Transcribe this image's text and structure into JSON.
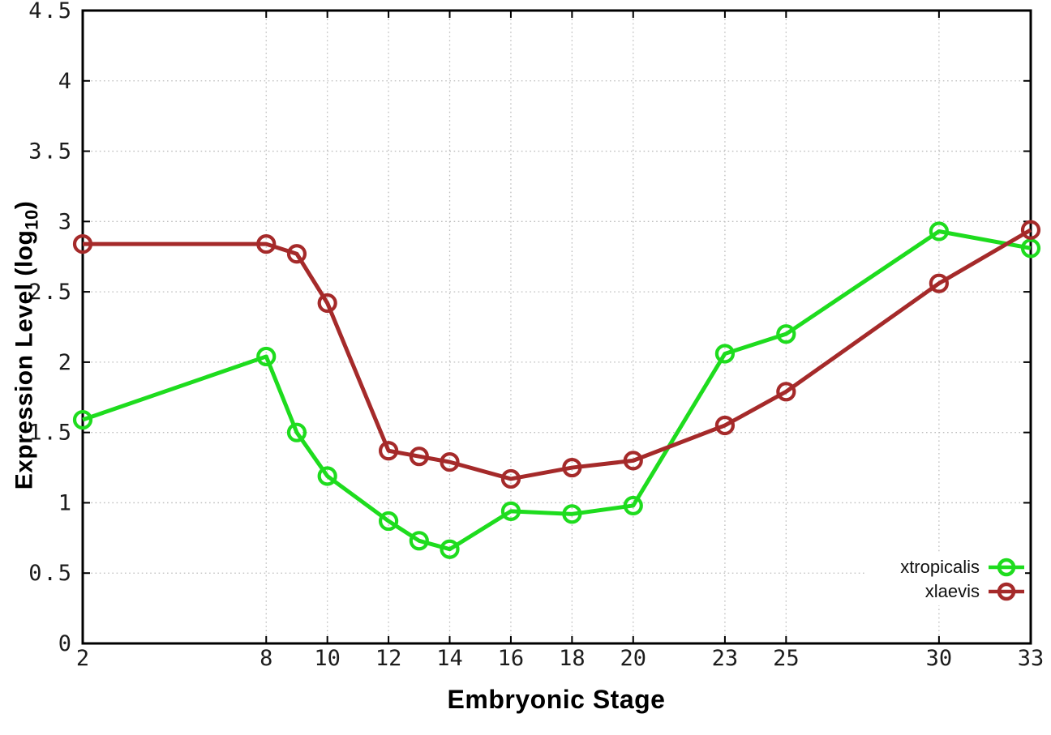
{
  "chart_data": {
    "type": "line",
    "x": [
      2,
      8,
      9,
      10,
      12,
      13,
      14,
      16,
      18,
      20,
      23,
      25,
      30,
      33
    ],
    "series": [
      {
        "name": "xtropicalis",
        "color": "#1edc1e",
        "values": [
          1.59,
          2.04,
          1.5,
          1.19,
          0.87,
          0.73,
          0.67,
          0.94,
          0.92,
          0.98,
          2.06,
          2.2,
          2.93,
          2.81
        ]
      },
      {
        "name": "xlaevis",
        "color": "#a52a2a",
        "values": [
          2.84,
          2.84,
          2.77,
          2.42,
          1.37,
          1.33,
          1.29,
          1.17,
          1.25,
          1.3,
          1.55,
          1.79,
          2.56,
          2.94
        ]
      }
    ],
    "title": "",
    "xlabel": "Embryonic Stage",
    "ylabel": {
      "main": "Expression Level (log",
      "sub": "10",
      "close": ")"
    },
    "xticks": [
      2,
      8,
      10,
      12,
      14,
      16,
      18,
      20,
      23,
      25,
      30,
      33
    ],
    "yticks": [
      "0",
      "0.5",
      "1",
      "1.5",
      "2",
      "2.5",
      "3",
      "3.5",
      "4",
      "4.5"
    ],
    "xlim": [
      2,
      33
    ],
    "ylim": [
      0,
      4.5
    ],
    "grid": true,
    "legend_position": "bottom-right",
    "marker": "open-circle",
    "axis_color": "#000000",
    "grid_color": "#bdbdbd",
    "tick_label_color": "#1c1c1c"
  }
}
